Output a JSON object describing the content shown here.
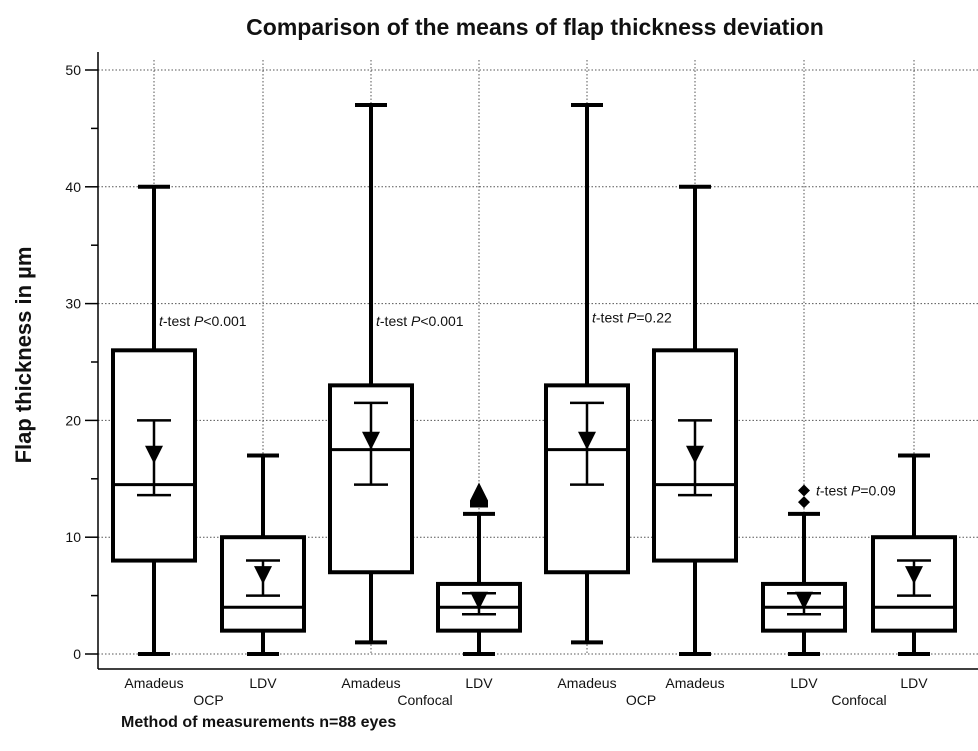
{
  "chart_data": {
    "type": "box",
    "title": "Comparison of the means of flap thickness deviation",
    "ylabel": "Flap thickness in µm",
    "xlabel": "Method of measurements n=88 eyes",
    "ylim": [
      0,
      50
    ],
    "yticks": [
      0,
      10,
      20,
      30,
      40,
      50
    ],
    "grid": true,
    "boxes": [
      {
        "label": "Amadeus",
        "min": 0,
        "q1": 8,
        "median": 14.5,
        "q3": 26,
        "max": 40,
        "mean": 16.8,
        "ci_low": 13.6,
        "ci_high": 20,
        "outliers": []
      },
      {
        "label": "LDV",
        "min": 0,
        "q1": 2,
        "median": 4,
        "q3": 10,
        "max": 17,
        "mean": 6.5,
        "ci_low": 5,
        "ci_high": 8,
        "outliers": []
      },
      {
        "label": "Amadeus",
        "min": 1,
        "q1": 7,
        "median": 17.5,
        "q3": 23,
        "max": 47,
        "mean": 18,
        "ci_low": 14.5,
        "ci_high": 21.5,
        "outliers": []
      },
      {
        "label": "LDV",
        "min": 0,
        "q1": 2,
        "median": 4,
        "q3": 6,
        "max": 12,
        "mean": 4.3,
        "ci_low": 3.4,
        "ci_high": 5.2,
        "outliers": [
          13,
          14
        ]
      },
      {
        "label": "Amadeus",
        "min": 1,
        "q1": 7,
        "median": 17.5,
        "q3": 23,
        "max": 47,
        "mean": 18,
        "ci_low": 14.5,
        "ci_high": 21.5,
        "outliers": []
      },
      {
        "label": "Amadeus",
        "min": 0,
        "q1": 8,
        "median": 14.5,
        "q3": 26,
        "max": 40,
        "mean": 16.8,
        "ci_low": 13.6,
        "ci_high": 20,
        "outliers": []
      },
      {
        "label": "LDV",
        "min": 0,
        "q1": 2,
        "median": 4,
        "q3": 6,
        "max": 12,
        "mean": 4.3,
        "ci_low": 3.4,
        "ci_high": 5.2,
        "outliers": [
          13,
          14
        ]
      },
      {
        "label": "LDV",
        "min": 0,
        "q1": 2,
        "median": 4,
        "q3": 10,
        "max": 17,
        "mean": 6.5,
        "ci_low": 5,
        "ci_high": 8,
        "outliers": []
      }
    ],
    "groups": [
      {
        "label": "OCP",
        "boxes": [
          0,
          1
        ]
      },
      {
        "label": "Confocal",
        "boxes": [
          2,
          3
        ]
      },
      {
        "label": "OCP",
        "boxes": [
          4,
          5
        ]
      },
      {
        "label": "Confocal",
        "boxes": [
          6,
          7
        ]
      }
    ],
    "annotations": [
      {
        "prefix": "t",
        "test": "-test ",
        "p": "P",
        "rel": "<0.001",
        "anchor_box": 0,
        "y": 28.5
      },
      {
        "prefix": "t",
        "test": "-test ",
        "p": "P",
        "rel": "<0.001",
        "anchor_box": 2,
        "y": 28.5
      },
      {
        "prefix": "t",
        "test": "-test ",
        "p": "P",
        "rel": "=0.22",
        "anchor_box": 4,
        "y": 28.8
      },
      {
        "prefix": "t",
        "test": "-test ",
        "p": "P",
        "rel": "=0.09",
        "anchor_box": 6,
        "y": 14
      }
    ]
  }
}
